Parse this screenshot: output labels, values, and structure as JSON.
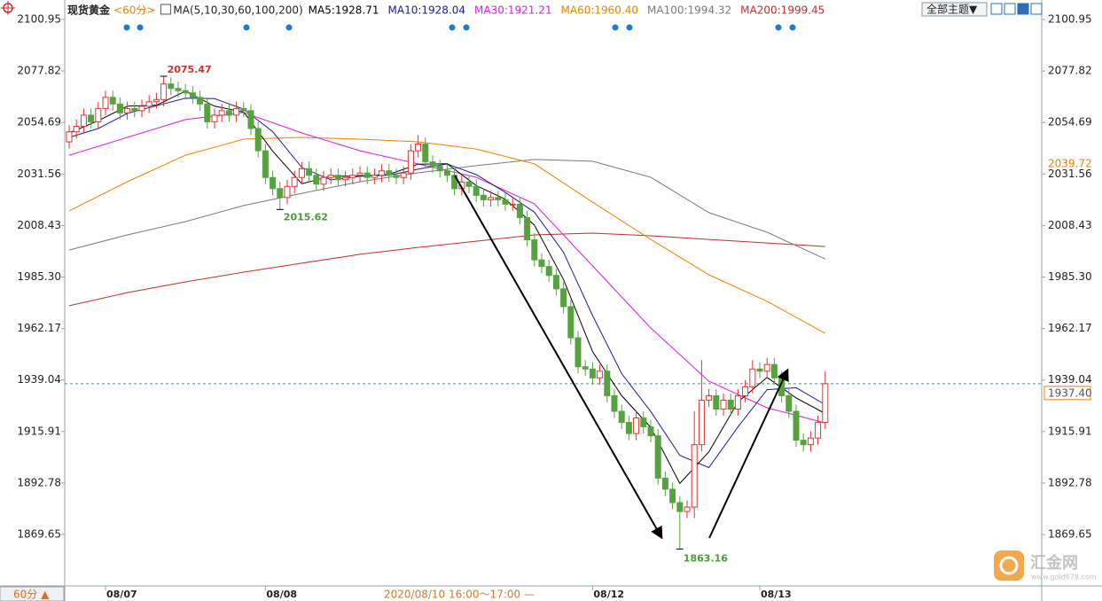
{
  "chart_data": {
    "type": "candlestick",
    "title": "现货黄金",
    "period": "<60分>",
    "indicator": "MA(5,10,30,60,100,200)",
    "categories": [
      null,
      null,
      null,
      null,
      null,
      "08/07",
      null,
      null,
      null,
      null,
      null,
      null,
      null,
      null,
      null,
      null,
      null,
      null,
      null,
      null,
      null,
      null,
      null,
      null,
      null,
      null,
      null,
      "08/08",
      null,
      null,
      null,
      null,
      null,
      null,
      null,
      null,
      null,
      null,
      null,
      null,
      null,
      null,
      null,
      null,
      null,
      null,
      null,
      null,
      null,
      null,
      null,
      null,
      null,
      null,
      null,
      null,
      null,
      null,
      null,
      null,
      null,
      null,
      null,
      null,
      null,
      null,
      null,
      null,
      null,
      null,
      null,
      null,
      "08/12",
      null,
      null,
      null,
      null,
      null,
      null,
      null,
      null,
      null,
      null,
      null,
      null,
      null,
      null,
      null,
      null,
      null,
      null,
      null,
      null,
      null,
      null,
      "08/13",
      null,
      null,
      null,
      null,
      null,
      null,
      null,
      null,
      null
    ],
    "open": [
      2046,
      2050.5,
      2053,
      2058,
      2055,
      2061,
      2066,
      2063,
      2059,
      2061,
      2060,
      2062,
      2064,
      2065,
      2072,
      2070,
      2069,
      2068,
      2066,
      2063,
      2055,
      2058,
      2060,
      2058,
      2061,
      2060,
      2052,
      2042,
      2030,
      2025,
      2021,
      2026,
      2030,
      2034,
      2031,
      2027,
      2030,
      2031,
      2029,
      2030,
      2031,
      2032,
      2030,
      2031,
      2033,
      2031,
      2030,
      2032,
      2042,
      2045,
      2037,
      2035,
      2033,
      2031,
      2025,
      2028,
      2026,
      2022,
      2020,
      2021,
      2020,
      2018,
      2018,
      2012,
      2002,
      1993,
      1990,
      1986,
      1980,
      1972,
      1958,
      1945,
      1944,
      1940,
      1943,
      1932,
      1925,
      1920,
      1915,
      1922,
      1918,
      1914,
      1895,
      1890,
      1884,
      1880,
      1882,
      1910,
      1930,
      1932,
      1926,
      1930,
      1926,
      1932,
      1936,
      1944,
      1943,
      1946,
      1940,
      1932,
      1925,
      1912,
      1910,
      1913,
      1920
    ],
    "high": [
      2053.5,
      2056,
      2061,
      2061,
      2064,
      2069,
      2069,
      2066,
      2064,
      2064,
      2065,
      2067,
      2068,
      2075.47,
      2075,
      2073,
      2072,
      2071,
      2069,
      2066,
      2061,
      2063,
      2063,
      2064,
      2064,
      2063,
      2055,
      2045,
      2033,
      2028,
      2029,
      2033,
      2037,
      2037,
      2034,
      2033,
      2034,
      2034,
      2033,
      2034,
      2035,
      2035,
      2034,
      2036,
      2036,
      2034,
      2035,
      2045,
      2049,
      2048,
      2040,
      2038,
      2036,
      2034,
      2031,
      2031,
      2029,
      2025,
      2024,
      2024,
      2023,
      2021,
      2021,
      2015,
      2005,
      1996,
      1993,
      1989,
      1983,
      1975,
      1961,
      1948,
      1947,
      1946,
      1946,
      1935,
      1928,
      1923,
      1925,
      1925,
      1921,
      1917,
      1898,
      1893,
      1887,
      1885,
      1925,
      1948,
      1935,
      1935,
      1933,
      1933,
      1935,
      1939,
      1948,
      1947,
      1949,
      1949,
      1943,
      1935,
      1928,
      1915,
      1916,
      1923,
      1943
    ],
    "low": [
      2043,
      2047.5,
      2050,
      2052,
      2052,
      2058,
      2060,
      2056,
      2056,
      2057,
      2057,
      2059,
      2061,
      2062,
      2067,
      2066,
      2065,
      2063,
      2060,
      2052,
      2052,
      2055,
      2055,
      2055,
      2057,
      2049,
      2039,
      2027,
      2022,
      2015.62,
      2018,
      2023,
      2027,
      2028,
      2024,
      2024,
      2027,
      2026,
      2026,
      2027,
      2028,
      2027,
      2027,
      2028,
      2028,
      2027,
      2027,
      2029,
      2039,
      2034,
      2032,
      2030,
      2028,
      2022,
      2022,
      2023,
      2019,
      2017,
      2017,
      2017,
      2015,
      2015,
      2009,
      1999,
      1990,
      1987,
      1983,
      1977,
      1969,
      1955,
      1942,
      1941,
      1937,
      1937,
      1929,
      1922,
      1917,
      1912,
      1912,
      1915,
      1911,
      1892,
      1887,
      1881,
      1863.16,
      1877,
      1877,
      1907,
      1927,
      1923,
      1923,
      1923,
      1923,
      1929,
      1933,
      1940,
      1940,
      1937,
      1929,
      1922,
      1909,
      1907,
      1907,
      1910,
      1917
    ],
    "close": [
      2050.5,
      2053,
      2058,
      2055,
      2061,
      2066,
      2063,
      2059,
      2061,
      2060,
      2062,
      2064,
      2065,
      2072,
      2070,
      2069,
      2068,
      2066,
      2063,
      2055,
      2058,
      2060,
      2058,
      2061,
      2060,
      2052,
      2042,
      2030,
      2025,
      2021,
      2026,
      2030,
      2034,
      2031,
      2027,
      2030,
      2031,
      2029,
      2030,
      2031,
      2032,
      2030,
      2031,
      2033,
      2031,
      2030,
      2032,
      2042,
      2045,
      2037,
      2035,
      2033,
      2031,
      2025,
      2028,
      2026,
      2022,
      2020,
      2021,
      2020,
      2018,
      2018,
      2012,
      2002,
      1993,
      1990,
      1986,
      1980,
      1972,
      1958,
      1945,
      1944,
      1940,
      1943,
      1932,
      1925,
      1920,
      1915,
      1922,
      1918,
      1914,
      1895,
      1890,
      1884,
      1880,
      1882,
      1910,
      1930,
      1932,
      1926,
      1930,
      1926,
      1932,
      1936,
      1944,
      1943,
      1946,
      1940,
      1932,
      1925,
      1912,
      1910,
      1913,
      1920,
      1937.4
    ],
    "up_color": "#e8322f",
    "down_color": "#55a33f",
    "series": [
      {
        "name": "MA5:1928.71",
        "color": "#000000",
        "x": [
          0,
          4,
          8,
          12,
          16,
          20,
          24,
          28,
          32,
          36,
          40,
          44,
          48,
          52,
          56,
          60,
          64,
          68,
          72,
          76,
          80,
          84,
          88,
          92,
          96,
          100,
          104
        ],
        "values": [
          2050,
          2055.5,
          2062,
          2062.4,
          2068.8,
          2062,
          2059.4,
          2041.8,
          2027.2,
          2030.6,
          2030.6,
          2031.4,
          2036,
          2036.2,
          2026.4,
          2020.2,
          2008.6,
          1984.2,
          1951.8,
          1932,
          1917.8,
          1892.6,
          1906.8,
          1929.2,
          1940.2,
          1931,
          1924
        ]
      },
      {
        "name": "MA10:1928.04",
        "color": "#1c1c9e",
        "x": [
          0,
          4,
          8,
          12,
          16,
          20,
          24,
          28,
          32,
          36,
          40,
          44,
          48,
          52,
          56,
          60,
          64,
          68,
          72,
          76,
          80,
          84,
          88,
          92,
          96,
          100,
          104
        ],
        "values": [
          2048,
          2052,
          2058.8,
          2062.2,
          2065.6,
          2065.4,
          2060.7,
          2050.6,
          2034.5,
          2028.9,
          2030.6,
          2031,
          2033.7,
          2036.1,
          2031.3,
          2023.3,
          2014.4,
          1996.4,
          1968,
          1941.9,
          1924.9,
          1905.2,
          1899.7,
          1918,
          1934.7,
          1935.6,
          1928
        ]
      },
      {
        "name": "MA30:1921.21",
        "color": "#e01ee0",
        "x": [
          0,
          8,
          16,
          24,
          32,
          40,
          48,
          56,
          64,
          72,
          80,
          88,
          96,
          104
        ],
        "values": [
          2040,
          2048,
          2056,
          2059.2,
          2050,
          2042,
          2036.1,
          2030.1,
          2018.1,
          1990.3,
          1962.4,
          1938.5,
          1926.6,
          1919.8
        ]
      },
      {
        "name": "MA60:1960.40",
        "color": "#f08300",
        "x": [
          0,
          8,
          16,
          24,
          32,
          40,
          48,
          56,
          64,
          72,
          80,
          88,
          96,
          104
        ],
        "values": [
          2015,
          2028.1,
          2040,
          2047.2,
          2048,
          2047.2,
          2046,
          2042.8,
          2036.1,
          2018.9,
          2002.2,
          1986.3,
          1974.4,
          1960
        ]
      },
      {
        "name": "MA100:1994.32",
        "color": "#7a7a7a",
        "x": [
          0,
          8,
          16,
          24,
          32,
          40,
          48,
          56,
          64,
          72,
          80,
          88,
          96,
          104
        ],
        "values": [
          1997.4,
          2004.2,
          2010.2,
          2017.4,
          2022.9,
          2028.1,
          2032.1,
          2035.3,
          2038.1,
          2037.3,
          2030.1,
          2014.2,
          2005.4,
          1993.4
        ]
      },
      {
        "name": "MA200:1999.45",
        "color": "#c0302c",
        "x": [
          0,
          8,
          16,
          24,
          32,
          40,
          48,
          56,
          64,
          72,
          80,
          88,
          96,
          104
        ],
        "values": [
          1972.4,
          1978.3,
          1983.1,
          1987.5,
          1991.5,
          1995.5,
          1998.6,
          2001.4,
          2004.2,
          2005,
          2003.8,
          2002.2,
          2000.6,
          1999
        ]
      }
    ],
    "ylim": [
      1846.97,
      2105.73
    ],
    "yticks": [
      2100.95,
      2077.82,
      2054.69,
      2031.56,
      2008.43,
      {
        "value": 1985.3,
        "label": "1985.30"
      },
      1962.17,
      1939.04,
      1915.91,
      1892.78,
      1869.65
    ],
    "grid": false,
    "price_tags": [
      {
        "value": 2039.72,
        "color": "#f08300"
      },
      {
        "value": 1937.4,
        "label": "1937.40",
        "color": "#f08300"
      }
    ],
    "theme_button": "全部主题▼",
    "period_button": "60分 ▲",
    "crosshair_time": "2020/08/10 16:00～17:00 —",
    "watermark": {
      "name": "汇金网",
      "url": "www.gold678.com"
    }
  }
}
